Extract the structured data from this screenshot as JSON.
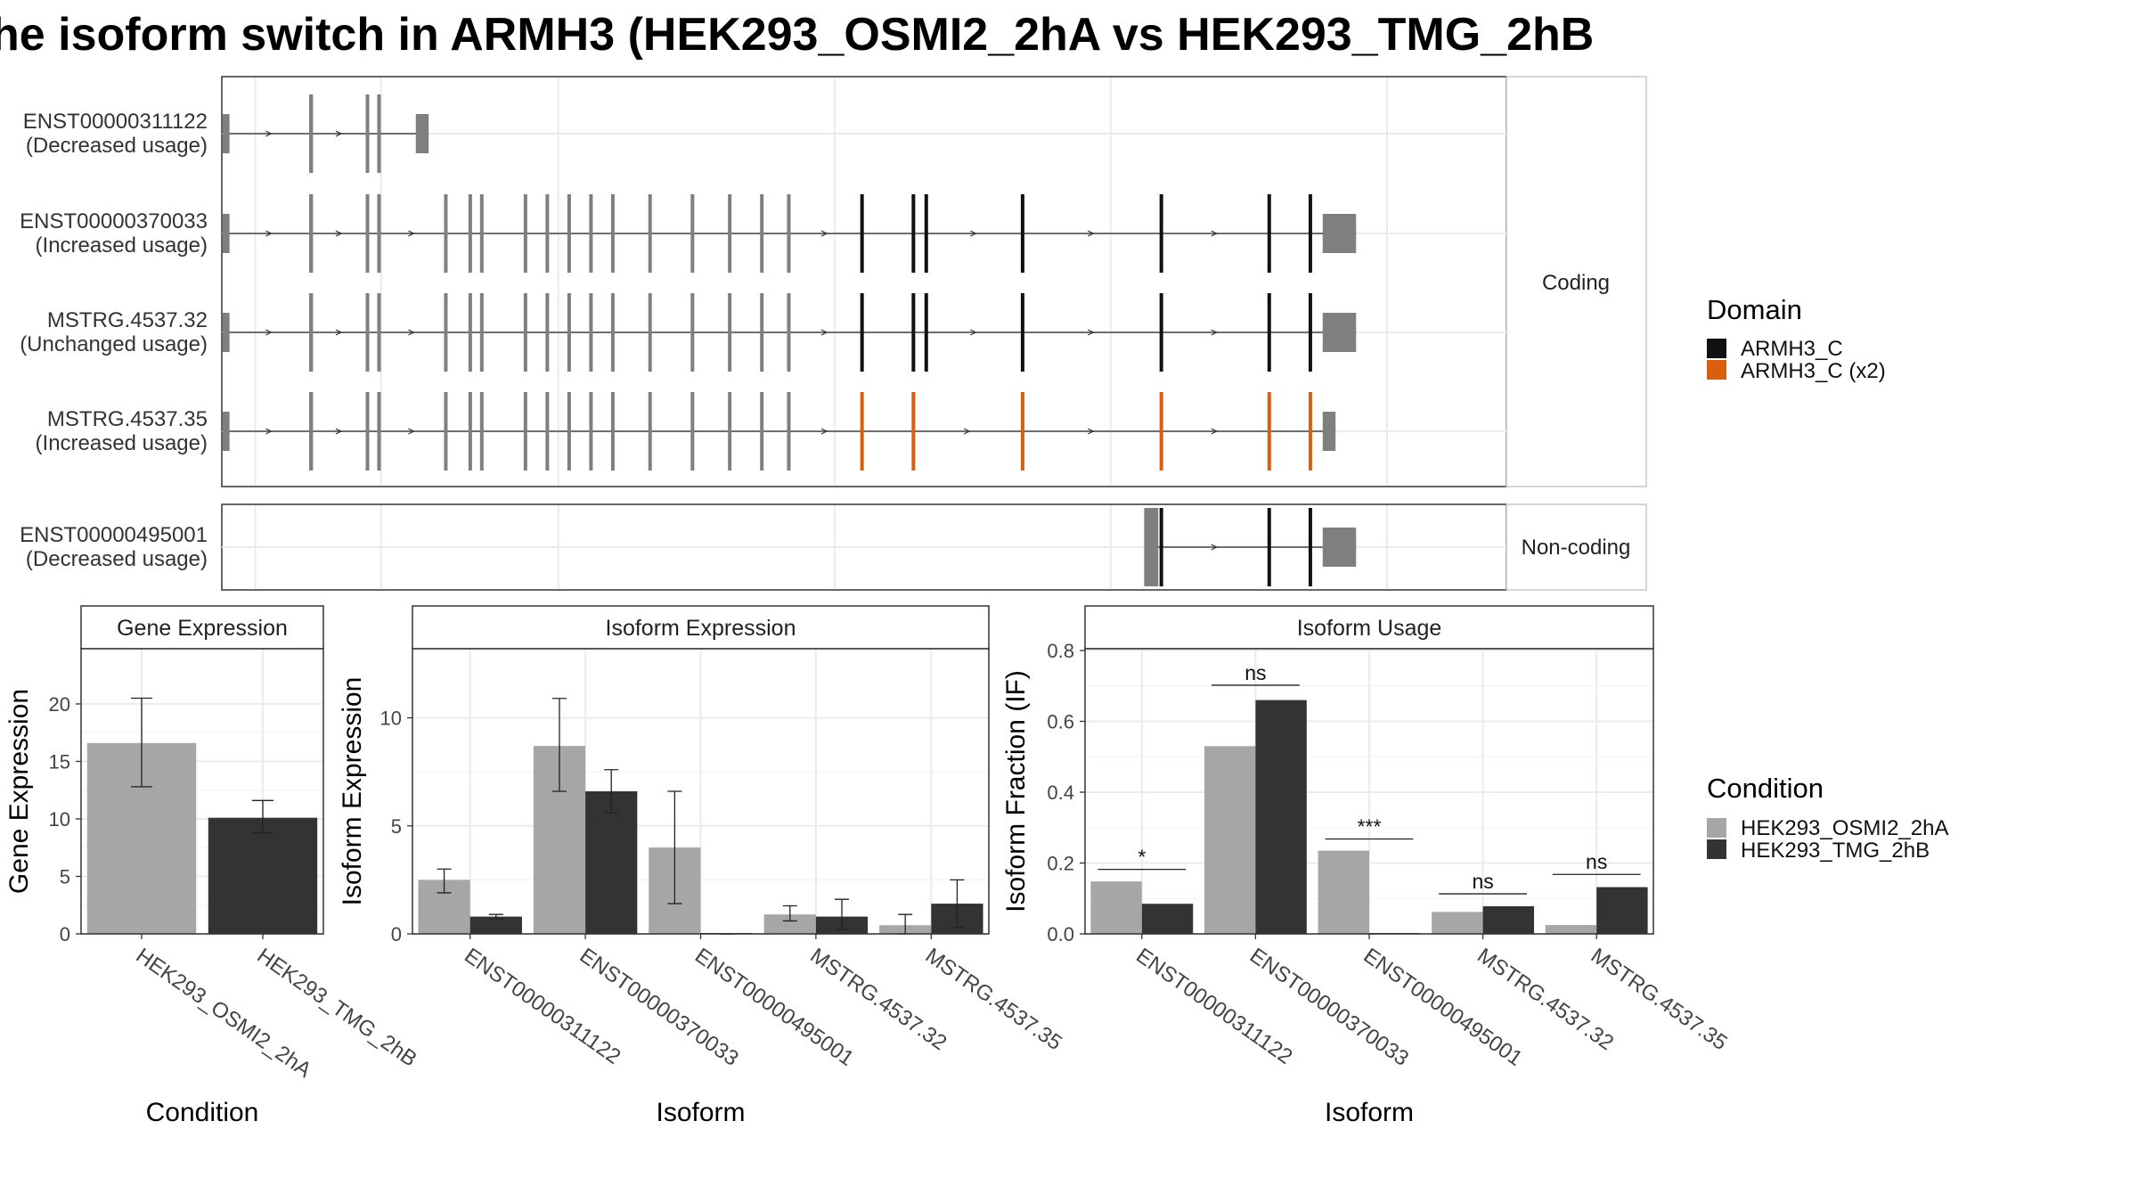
{
  "title": "he isoform switch in ARMH3 (HEK293_OSMI2_2hA vs HEK293_TMG_2hB",
  "colors": {
    "cond_a": "#a6a6a6",
    "cond_b": "#333333",
    "exon": "#7f7f7f",
    "domain_single": "#111111",
    "domain_x2": "#d95f0e",
    "grid": "#ebebeb",
    "strip_fill": "#ffffff"
  },
  "structure": {
    "facets": [
      "Coding",
      "Non-coding"
    ],
    "transcripts": [
      {
        "id": "ENST00000311122",
        "usage": "(Decreased usage)",
        "facet": "Coding",
        "domain": "none",
        "exons": [
          [
            0.03,
            0.6
          ],
          [
            6.8,
            7.1
          ],
          [
            11.2,
            11.4
          ],
          [
            12.1,
            12.3
          ],
          [
            15.1,
            16.1
          ]
        ],
        "utr_end": false
      },
      {
        "id": "ENST00000370033",
        "usage": "(Increased usage)",
        "facet": "Coding",
        "domain": "ARMH3_C",
        "exons": [
          [
            0.03,
            0.6
          ],
          [
            6.8,
            7.1
          ],
          [
            11.2,
            11.4
          ],
          [
            12.1,
            12.3
          ],
          [
            17.3,
            17.5
          ],
          [
            19.2,
            19.4
          ],
          [
            20.1,
            20.3
          ],
          [
            23.5,
            23.7
          ],
          [
            25.2,
            25.4
          ],
          [
            26.9,
            27.1
          ],
          [
            28.6,
            28.8
          ],
          [
            30.3,
            30.5
          ],
          [
            33.2,
            33.4
          ],
          [
            36.5,
            36.7
          ],
          [
            39.4,
            39.6
          ],
          [
            41.9,
            42.1
          ],
          [
            44,
            44.2
          ],
          [
            49.7,
            49.9
          ],
          [
            53.7,
            53.9
          ],
          [
            54.7,
            54.9
          ],
          [
            62.2,
            62.4
          ],
          [
            73,
            73.2
          ],
          [
            81.4,
            81.6
          ],
          [
            84.6,
            84.8
          ],
          [
            85.7,
            88.3
          ]
        ],
        "utr_end": true
      },
      {
        "id": "MSTRG.4537.32",
        "usage": "(Unchanged usage)",
        "facet": "Coding",
        "domain": "ARMH3_C",
        "exons": [
          [
            0.03,
            0.6
          ],
          [
            6.8,
            7.1
          ],
          [
            11.2,
            11.4
          ],
          [
            12.1,
            12.3
          ],
          [
            17.3,
            17.5
          ],
          [
            19.2,
            19.4
          ],
          [
            20.1,
            20.3
          ],
          [
            23.5,
            23.7
          ],
          [
            25.2,
            25.4
          ],
          [
            26.9,
            27.1
          ],
          [
            28.6,
            28.8
          ],
          [
            30.3,
            30.5
          ],
          [
            33.2,
            33.4
          ],
          [
            36.5,
            36.7
          ],
          [
            39.4,
            39.6
          ],
          [
            41.9,
            42.1
          ],
          [
            44,
            44.2
          ],
          [
            49.7,
            49.9
          ],
          [
            53.7,
            53.9
          ],
          [
            54.7,
            54.9
          ],
          [
            62.2,
            62.4
          ],
          [
            73,
            73.2
          ],
          [
            81.4,
            81.6
          ],
          [
            84.6,
            84.8
          ],
          [
            85.7,
            88.3
          ]
        ],
        "utr_end": true
      },
      {
        "id": "MSTRG.4537.35",
        "usage": "(Increased usage)",
        "facet": "Coding",
        "domain": "ARMH3_C (x2)",
        "exons": [
          [
            0.03,
            0.6
          ],
          [
            6.8,
            7.1
          ],
          [
            11.2,
            11.4
          ],
          [
            12.1,
            12.3
          ],
          [
            17.3,
            17.5
          ],
          [
            19.2,
            19.4
          ],
          [
            20.1,
            20.3
          ],
          [
            23.5,
            23.7
          ],
          [
            25.2,
            25.4
          ],
          [
            26.9,
            27.1
          ],
          [
            28.6,
            28.8
          ],
          [
            30.3,
            30.5
          ],
          [
            33.2,
            33.4
          ],
          [
            36.5,
            36.7
          ],
          [
            39.4,
            39.6
          ],
          [
            41.9,
            42.1
          ],
          [
            44,
            44.2
          ],
          [
            49.7,
            49.9
          ],
          [
            53.7,
            53.9
          ],
          [
            62.2,
            62.4
          ],
          [
            73,
            73.2
          ],
          [
            81.4,
            81.6
          ],
          [
            84.6,
            84.8
          ],
          [
            85.7,
            86.7
          ]
        ],
        "utr_end": true
      },
      {
        "id": "ENST00000495001",
        "usage": "(Decreased usage)",
        "facet": "Non-coding",
        "domain": "ARMH3_C",
        "exons": [
          [
            71.8,
            72.9
          ],
          [
            73,
            73.2
          ],
          [
            81.4,
            81.6
          ],
          [
            84.6,
            84.8
          ],
          [
            85.7,
            88.3
          ]
        ],
        "utr_end": true
      }
    ],
    "domain_exons": [
      [
        49.7,
        49.9
      ],
      [
        53.7,
        53.9
      ],
      [
        54.7,
        54.9
      ],
      [
        62.2,
        62.4
      ],
      [
        73,
        73.2
      ],
      [
        81.4,
        81.6
      ],
      [
        84.6,
        84.8
      ]
    ],
    "domain_x2_exons": [
      [
        49.7,
        49.9
      ],
      [
        53.7,
        53.9
      ],
      [
        62.2,
        62.4
      ],
      [
        73,
        73.2
      ],
      [
        81.4,
        81.6
      ],
      [
        84.6,
        84.8
      ]
    ]
  },
  "legend_domain": {
    "title": "Domain",
    "entries": [
      {
        "label": "ARMH3_C",
        "color": "#111111"
      },
      {
        "label": "ARMH3_C (x2)",
        "color": "#d95f0e"
      }
    ]
  },
  "legend_condition": {
    "title": "Condition",
    "entries": [
      {
        "label": "HEK293_OSMI2_2hA",
        "color": "#a6a6a6"
      },
      {
        "label": "HEK293_TMG_2hB",
        "color": "#333333"
      }
    ]
  },
  "chart_data": [
    {
      "type": "bar",
      "title": "Gene Expression",
      "xlabel": "Condition",
      "ylabel": "Gene Expression",
      "categories": [
        "HEK293_OSMI2_2hA",
        "HEK293_TMG_2hB"
      ],
      "values": [
        16.6,
        10.1
      ],
      "error_low": [
        12.8,
        8.8
      ],
      "error_high": [
        20.5,
        11.6
      ],
      "ylim": [
        0,
        24.8
      ],
      "yticks": [
        0,
        5,
        10,
        15,
        20
      ],
      "grid": true
    },
    {
      "type": "bar",
      "title": "Isoform Expression",
      "xlabel": "Isoform",
      "ylabel": "Isoform Expression",
      "categories": [
        "ENST00000311122",
        "ENST00000370033",
        "ENST00000495001",
        "MSTRG.4537.32",
        "MSTRG.4537.35"
      ],
      "series": [
        {
          "name": "HEK293_OSMI2_2hA",
          "values": [
            2.5,
            8.7,
            4.0,
            0.9,
            0.4
          ],
          "error_low": [
            1.9,
            6.6,
            1.4,
            0.6,
            0.0
          ],
          "error_high": [
            3.0,
            10.9,
            6.6,
            1.3,
            0.9
          ]
        },
        {
          "name": "HEK293_TMG_2hB",
          "values": [
            0.8,
            6.6,
            0.0,
            0.8,
            1.4
          ],
          "error_low": [
            0.7,
            5.6,
            0.0,
            0.2,
            0.3
          ],
          "error_high": [
            0.9,
            7.6,
            0.0,
            1.6,
            2.5
          ]
        }
      ],
      "ylim": [
        0,
        13.2
      ],
      "yticks": [
        0,
        5,
        10
      ],
      "grid": true
    },
    {
      "type": "bar",
      "title": "Isoform Usage",
      "xlabel": "Isoform",
      "ylabel": "Isoform Fraction (IF)",
      "categories": [
        "ENST00000311122",
        "ENST00000370033",
        "ENST00000495001",
        "MSTRG.4537.32",
        "MSTRG.4537.35"
      ],
      "series": [
        {
          "name": "HEK293_OSMI2_2hA",
          "values": [
            0.148,
            0.53,
            0.235,
            0.062,
            0.025
          ]
        },
        {
          "name": "HEK293_TMG_2hB",
          "values": [
            0.085,
            0.66,
            0.0,
            0.078,
            0.132
          ]
        }
      ],
      "significance": [
        "*",
        "ns",
        "***",
        "ns",
        "ns"
      ],
      "sig_y": [
        0.182,
        0.702,
        0.268,
        0.113,
        0.168
      ],
      "ylim": [
        0,
        0.805
      ],
      "yticks": [
        "0.0",
        "0.2",
        "0.4",
        "0.6",
        "0.8"
      ],
      "grid": true
    }
  ]
}
